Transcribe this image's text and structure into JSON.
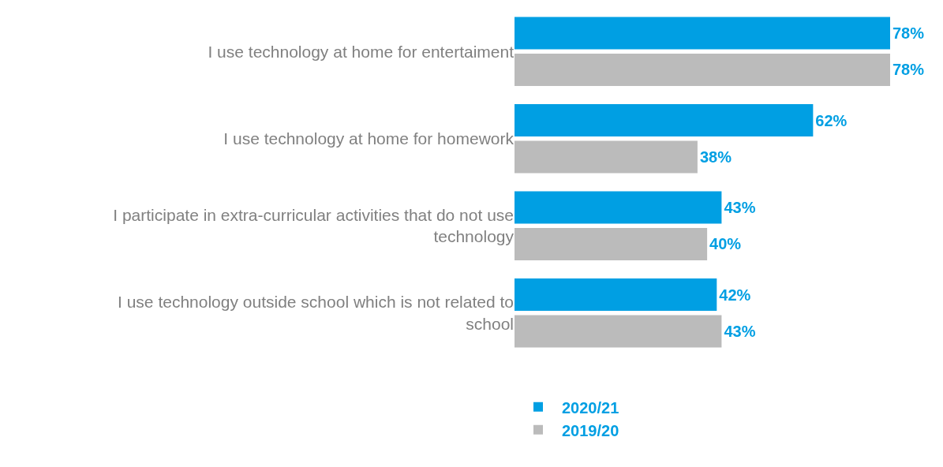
{
  "chart_data": {
    "type": "bar",
    "orientation": "horizontal",
    "categories": [
      "I use technology at home for entertaiment",
      "I use technology at home for homework",
      "I participate in extra-curricular activities that do not use technology",
      "I use technology outside school which is not related to school"
    ],
    "series": [
      {
        "name": "2020/21",
        "color": "#009fe3",
        "values": [
          78,
          62,
          43,
          42
        ],
        "value_labels": [
          "78%",
          "62%",
          "43%",
          "42%"
        ]
      },
      {
        "name": "2019/20",
        "color": "#bbbbbb",
        "values": [
          78,
          38,
          40,
          43
        ],
        "value_labels": [
          "78%",
          "38%",
          "40%",
          "43%"
        ]
      }
    ],
    "legend": "bottom"
  }
}
